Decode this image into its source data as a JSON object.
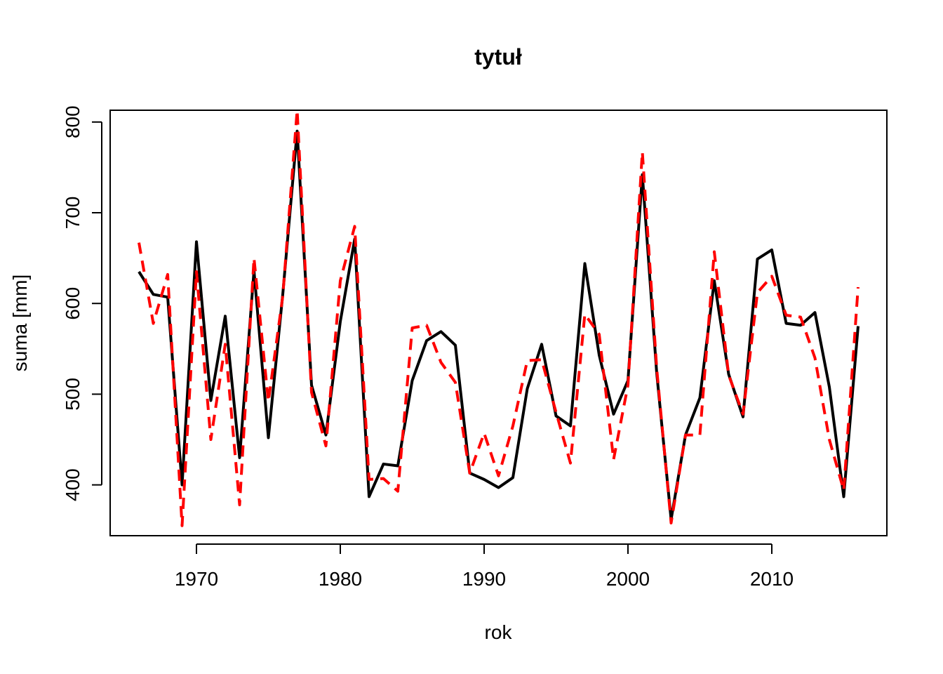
{
  "chart_data": {
    "type": "line",
    "title": "tytuł",
    "xlabel": "rok",
    "ylabel": "suma [mm]",
    "xlim": [
      1964,
      2018
    ],
    "ylim": [
      344,
      813
    ],
    "x_ticks": [
      1970,
      1980,
      1990,
      2000,
      2010
    ],
    "y_ticks": [
      400,
      500,
      600,
      700,
      800
    ],
    "grid": false,
    "x": [
      1966,
      1967,
      1968,
      1969,
      1970,
      1971,
      1972,
      1973,
      1974,
      1975,
      1976,
      1977,
      1978,
      1979,
      1980,
      1981,
      1982,
      1983,
      1984,
      1985,
      1986,
      1987,
      1988,
      1989,
      1990,
      1991,
      1992,
      1993,
      1994,
      1995,
      1996,
      1997,
      1998,
      1999,
      2000,
      2001,
      2002,
      2003,
      2004,
      2005,
      2006,
      2007,
      2008,
      2009,
      2010,
      2011,
      2012,
      2013,
      2014,
      2015,
      2016
    ],
    "series": [
      {
        "color": "#000000",
        "dash": "solid",
        "values": [
          635,
          610,
          607,
          400,
          668,
          493,
          586,
          430,
          636,
          452,
          610,
          790,
          510,
          455,
          580,
          671,
          387,
          423,
          421,
          515,
          559,
          569,
          554,
          413,
          406,
          397,
          408,
          506,
          555,
          476,
          465,
          644,
          543,
          478,
          515,
          742,
          523,
          362,
          455,
          496,
          625,
          522,
          475,
          649,
          659,
          578,
          576,
          590,
          508,
          387,
          575
        ]
      },
      {
        "color": "#ff0000",
        "dash": "dashed",
        "values": [
          667,
          578,
          632,
          355,
          635,
          450,
          555,
          378,
          650,
          492,
          608,
          813,
          502,
          443,
          625,
          685,
          406,
          407,
          393,
          573,
          576,
          535,
          513,
          413,
          457,
          410,
          465,
          537,
          538,
          480,
          424,
          588,
          566,
          428,
          510,
          767,
          528,
          358,
          455,
          455,
          657,
          521,
          478,
          612,
          630,
          587,
          585,
          540,
          450,
          394,
          618
        ]
      }
    ]
  }
}
